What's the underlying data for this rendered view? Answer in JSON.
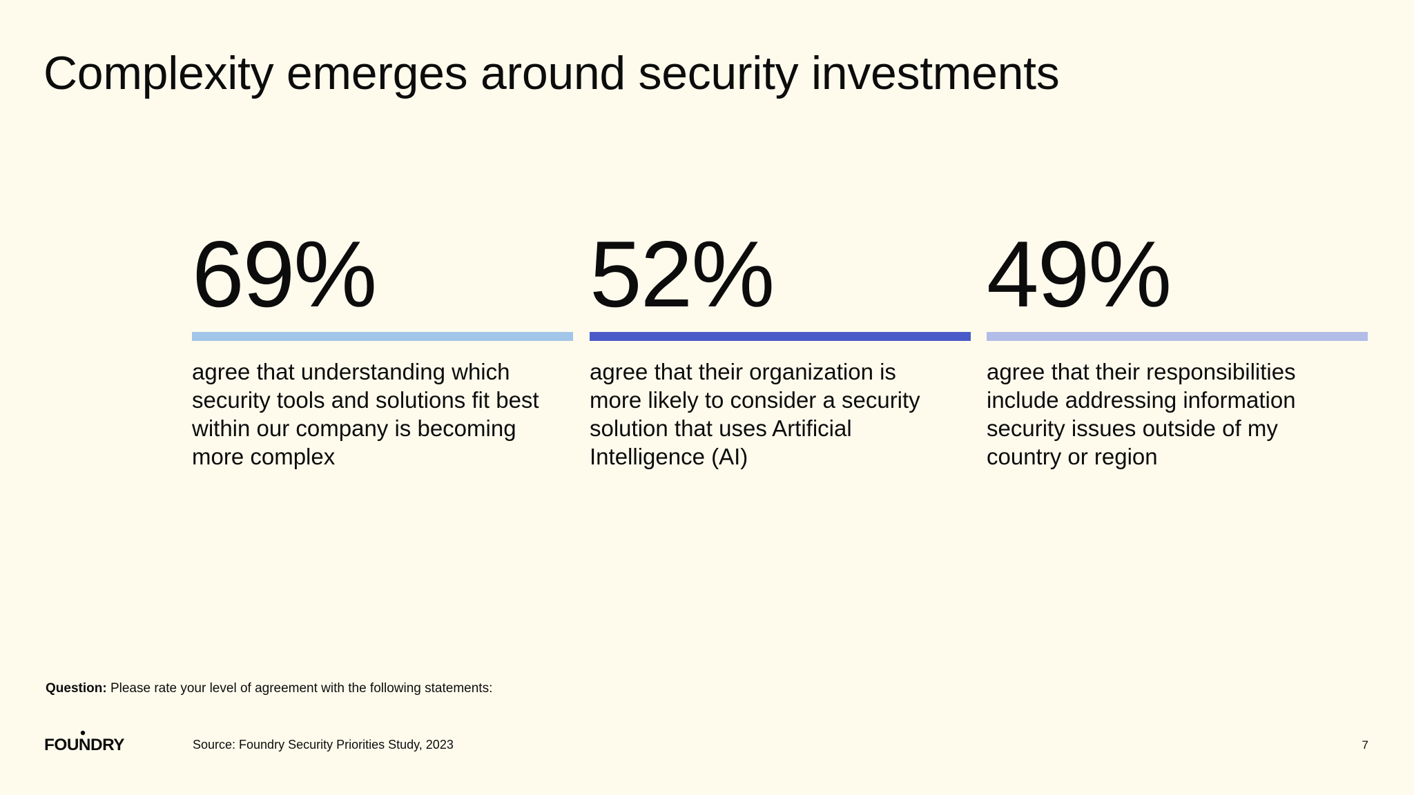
{
  "slide": {
    "title": "Complexity emerges around security investments",
    "stats": [
      {
        "value": "69%",
        "color": "#a2c6ea",
        "description": "agree that understanding which security tools and solutions fit best within our company is becoming more complex"
      },
      {
        "value": "52%",
        "color": "#4a5ac8",
        "description": "agree that their organization is more likely to consider a security solution that uses Artificial Intelligence (AI)"
      },
      {
        "value": "49%",
        "color": "#b2bce8",
        "description": "agree that their responsibilities include addressing information security issues outside of my country or region"
      }
    ],
    "question_label": "Question:",
    "question_text": "Please rate your level of agreement with the following statements:",
    "logo_text": "FOUNDRY",
    "source": "Source: Foundry Security Priorities Study, 2023",
    "page_number": "7"
  }
}
